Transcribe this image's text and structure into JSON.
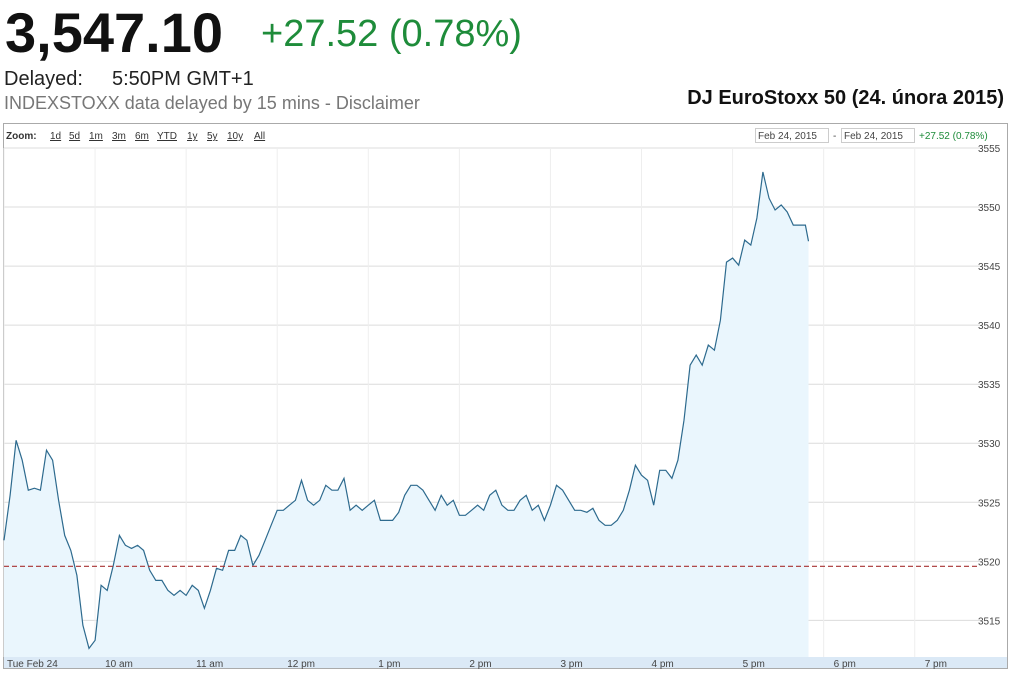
{
  "header": {
    "price": "3,547.10",
    "change": "+27.52 (0.78%)",
    "delayed_label": "Delayed:",
    "delayed_time": "5:50PM GMT+1",
    "source": "INDEXSTOXX data delayed by 15 mins - Disclaimer"
  },
  "toolbar": {
    "zoom_label": "Zoom:",
    "zoom_options": [
      "1d",
      "5d",
      "1m",
      "3m",
      "6m",
      "YTD",
      "1y",
      "5y",
      "10y",
      "All"
    ],
    "range_from": "Feb 24, 2015",
    "range_separator": "-",
    "range_to": "Feb 24, 2015",
    "range_change": "+27.52 (0.78%)"
  },
  "chart_data": {
    "type": "area",
    "title": "DJ EuroStoxx 50 (24. února 2015)",
    "x": [
      540,
      544,
      548,
      552,
      556,
      560,
      564,
      568,
      572,
      576,
      580,
      584,
      588,
      592,
      596,
      600,
      604,
      608,
      612,
      616,
      620,
      624,
      628,
      632,
      636,
      640,
      644,
      648,
      652,
      656,
      660,
      664,
      668,
      672,
      676,
      680,
      684,
      688,
      692,
      696,
      700,
      704,
      708,
      712,
      716,
      720,
      724,
      728,
      732,
      736,
      740,
      744,
      748,
      752,
      756,
      760,
      764,
      768,
      772,
      776,
      780,
      784,
      788,
      792,
      796,
      800,
      804,
      808,
      812,
      816,
      820,
      824,
      828,
      832,
      836,
      840,
      844,
      848,
      852,
      856,
      860,
      864,
      868,
      872,
      876,
      880,
      884,
      888,
      892,
      896,
      900,
      904,
      908,
      912,
      916,
      920,
      924,
      928,
      932,
      936,
      940,
      944,
      948,
      952,
      956,
      960,
      964,
      968,
      972,
      976,
      980,
      984,
      988,
      992,
      996,
      1000,
      1004,
      1008,
      1012,
      1016,
      1020,
      1024,
      1028,
      1032,
      1036,
      1040,
      1044,
      1048,
      1052,
      1056,
      1060,
      1064,
      1068,
      1070
    ],
    "series": [
      {
        "name": "DJ EuroStoxx 50",
        "color": "#2d6a8e",
        "fill": "#eaf6fd",
        "values": [
          3521.78,
          3525.59,
          3530.25,
          3528.56,
          3526.02,
          3526.19,
          3526.02,
          3529.41,
          3528.56,
          3525.17,
          3522.2,
          3520.93,
          3518.81,
          3514.58,
          3512.63,
          3513.31,
          3517.97,
          3517.54,
          3519.66,
          3522.2,
          3521.36,
          3521.1,
          3521.36,
          3520.93,
          3519.24,
          3518.39,
          3518.39,
          3517.54,
          3517.12,
          3517.54,
          3517.12,
          3517.97,
          3517.54,
          3516.02,
          3517.54,
          3519.41,
          3519.24,
          3520.93,
          3520.93,
          3522.2,
          3521.78,
          3519.66,
          3520.51,
          3521.78,
          3523.05,
          3524.32,
          3524.32,
          3524.75,
          3525.17,
          3526.86,
          3525.17,
          3524.75,
          3525.17,
          3526.44,
          3526.02,
          3526.02,
          3527.03,
          3524.32,
          3524.75,
          3524.32,
          3524.75,
          3525.17,
          3523.47,
          3523.47,
          3523.47,
          3524.15,
          3525.59,
          3526.44,
          3526.44,
          3526.02,
          3525.17,
          3524.32,
          3525.59,
          3524.75,
          3525.17,
          3523.9,
          3523.9,
          3524.32,
          3524.75,
          3524.32,
          3525.59,
          3526.02,
          3524.75,
          3524.32,
          3524.32,
          3525.17,
          3525.59,
          3524.32,
          3524.75,
          3523.47,
          3524.75,
          3526.44,
          3526.02,
          3525.17,
          3524.32,
          3524.32,
          3524.15,
          3524.49,
          3523.47,
          3523.05,
          3523.05,
          3523.47,
          3524.32,
          3526.02,
          3528.14,
          3527.29,
          3526.86,
          3524.75,
          3527.71,
          3527.71,
          3527.03,
          3528.56,
          3531.95,
          3536.61,
          3537.46,
          3536.61,
          3538.31,
          3537.88,
          3540.42,
          3545.34,
          3545.68,
          3545.08,
          3547.2,
          3546.78,
          3549.07,
          3552.97,
          3550.76,
          3549.75,
          3550.17,
          3549.58,
          3548.47,
          3548.47,
          3548.47,
          3547.1
        ]
      }
    ],
    "xlim": [
      540,
      1183
    ],
    "xticks": [
      {
        "value": 540,
        "label": "Tue Feb 24"
      },
      {
        "value": 600,
        "label": "10 am"
      },
      {
        "value": 660,
        "label": "11 am"
      },
      {
        "value": 720,
        "label": "12 pm"
      },
      {
        "value": 780,
        "label": "1 pm"
      },
      {
        "value": 840,
        "label": "2 pm"
      },
      {
        "value": 900,
        "label": "3 pm"
      },
      {
        "value": 960,
        "label": "4 pm"
      },
      {
        "value": 1020,
        "label": "5 pm"
      },
      {
        "value": 1080,
        "label": "6 pm"
      },
      {
        "value": 1140,
        "label": "7 pm"
      }
    ],
    "ylim": [
      3511.9,
      3555
    ],
    "yticks": [
      3515,
      3520,
      3525,
      3530,
      3535,
      3540,
      3545,
      3550,
      3555
    ],
    "grid": true,
    "reference_line": {
      "value": 3519.58,
      "color": "#a83232"
    }
  }
}
